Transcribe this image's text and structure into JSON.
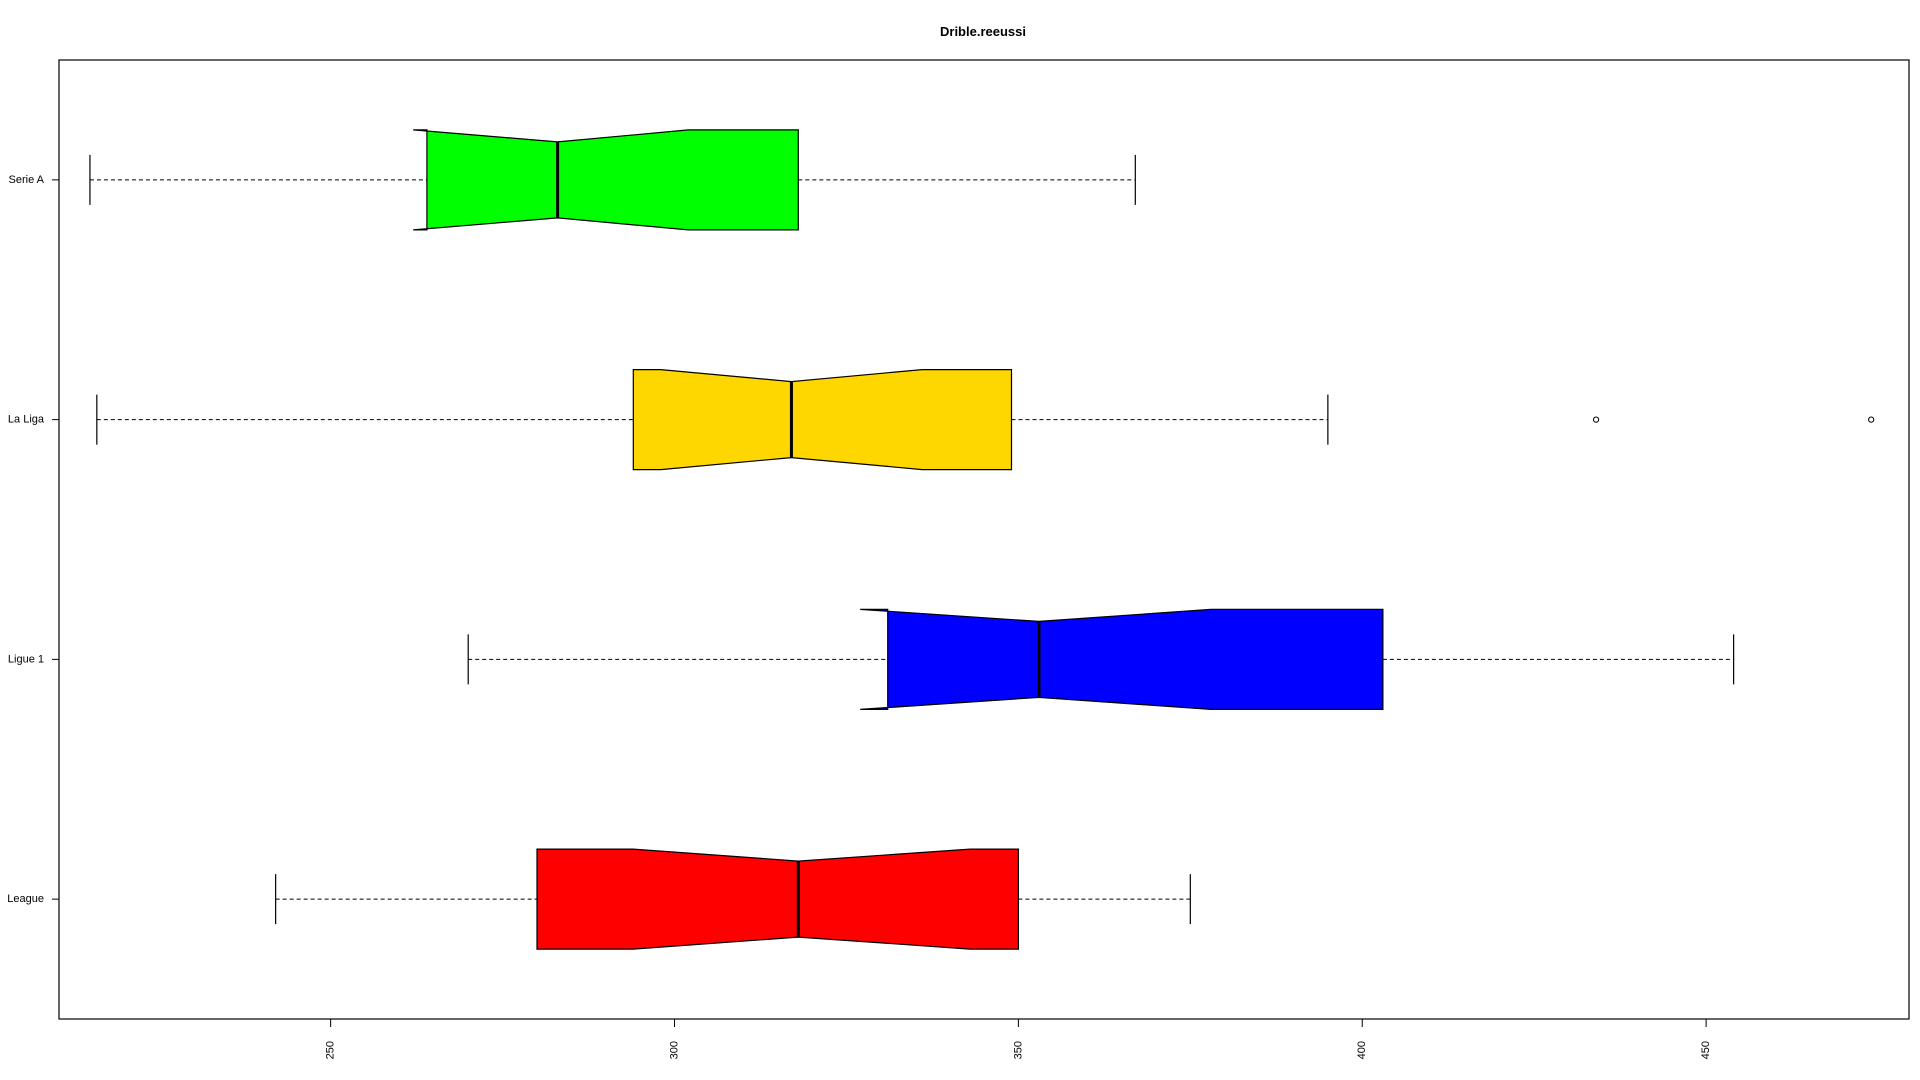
{
  "chart_data": {
    "type": "boxplot",
    "orientation": "horizontal",
    "notched": true,
    "title": "Drible.reeussi",
    "xlabel": "",
    "ylabel": "",
    "xlim": [
      210.5,
      479.5
    ],
    "x_ticks": [
      250,
      300,
      350,
      400,
      450
    ],
    "x_tick_labels": [
      "250",
      "300",
      "350",
      "400",
      "450"
    ],
    "grid": false,
    "legend": "none",
    "categories": [
      "League",
      "Ligue 1",
      "La Liga",
      "Serie A"
    ],
    "series": [
      {
        "category": "League",
        "color": "#ff0000",
        "whisker_low": 242,
        "q1": 280,
        "median": 318,
        "q3": 350,
        "whisker_high": 375,
        "notch_low": 294,
        "notch_high": 343,
        "outliers": []
      },
      {
        "category": "Ligue 1",
        "color": "#0000ff",
        "whisker_low": 270,
        "q1": 331,
        "median": 353,
        "q3": 403,
        "whisker_high": 454,
        "notch_low": 327,
        "notch_high": 378,
        "outliers": []
      },
      {
        "category": "La Liga",
        "color": "#ffd700",
        "whisker_low": 216,
        "q1": 294,
        "median": 317,
        "q3": 349,
        "whisker_high": 395,
        "notch_low": 298,
        "notch_high": 336,
        "outliers": [
          434,
          474
        ]
      },
      {
        "category": "Serie A",
        "color": "#00ff00",
        "whisker_low": 215,
        "q1": 264,
        "median": 283,
        "q3": 318,
        "whisker_high": 367,
        "notch_low": 262,
        "notch_high": 302,
        "outliers": []
      }
    ]
  }
}
